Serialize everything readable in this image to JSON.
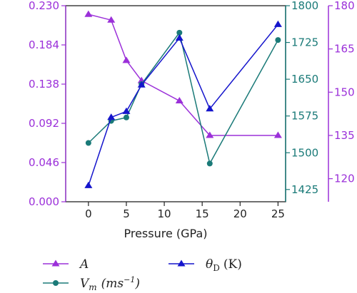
{
  "chart_data": {
    "type": "line",
    "xlabel": "Pressure (GPa)",
    "x": [
      0,
      3,
      5,
      7,
      12,
      16,
      25
    ],
    "x_ticks": [
      "0",
      "5",
      "10",
      "15",
      "20",
      "25"
    ],
    "xlim": [
      -3,
      26
    ],
    "axes": {
      "left": {
        "ylim": [
          0,
          0.23
        ],
        "ticks": [
          "0.000",
          "0.046",
          "0.092",
          "0.138",
          "0.184",
          "0.230"
        ],
        "color": "#9b30d9"
      },
      "right1": {
        "ylim": [
          1400,
          1800
        ],
        "ticks": [
          "1425",
          "1500",
          "1575",
          "1650",
          "1725",
          "1800"
        ],
        "color": "#1a7a78"
      },
      "right2": {
        "ylim": [
          112,
          180
        ],
        "ticks": [
          "120",
          "135",
          "150",
          "165",
          "180"
        ],
        "color": "#9b30d9"
      }
    },
    "series": [
      {
        "name": "A",
        "axis": "right2",
        "color": "#9b30d9",
        "marker": "triangle",
        "values": [
          177,
          175,
          161,
          154,
          147,
          135,
          135
        ]
      },
      {
        "name": "V_m (ms^-1)",
        "axis": "right1",
        "color": "#1a7a78",
        "marker": "circle",
        "values": [
          1520,
          1565,
          1572,
          1640,
          1745,
          1478,
          1730
        ]
      },
      {
        "name": "θ_D (K)",
        "axis": "left",
        "color": "#1515cc",
        "marker": "triangle",
        "values": [
          0.019,
          0.099,
          0.106,
          0.137,
          0.192,
          0.109,
          0.208
        ]
      }
    ],
    "legend": {
      "placement": "bottom",
      "A": "A",
      "Vm_main": "V",
      "Vm_sub": "m",
      "Vm_unit": "(ms",
      "Vm_exp": "−1",
      "Vm_close": ")",
      "theta_main": "θ",
      "theta_sub": "D",
      "theta_unit": "(K)"
    },
    "grid": false
  }
}
